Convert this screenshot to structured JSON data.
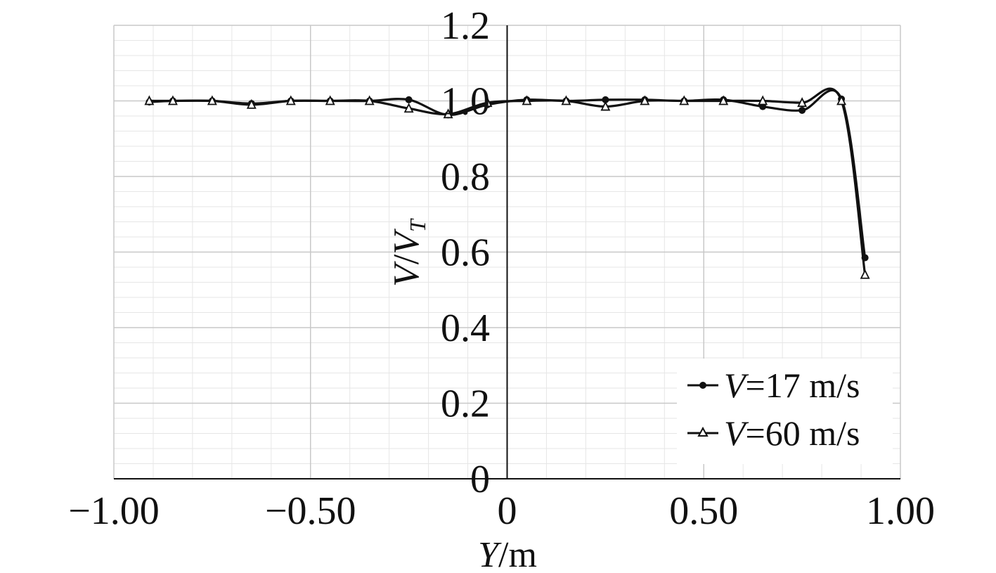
{
  "chart_data": {
    "type": "line",
    "xlabel": "Y/m",
    "ylabel": "V/V_T",
    "xlim": [
      -1.0,
      1.0
    ],
    "ylim": [
      0,
      1.2
    ],
    "x_ticks": [
      "−1.00",
      "−0.50",
      "0",
      "0.50",
      "1.00"
    ],
    "y_ticks": [
      "0",
      "0.2",
      "0.4",
      "0.6",
      "0.8",
      "1.0",
      "1.2"
    ],
    "grid": true,
    "legend_position": "bottom-right",
    "series": [
      {
        "name": "V=17 m/s",
        "marker": "filled-circle",
        "color": "#111111",
        "x": [
          -0.91,
          -0.85,
          -0.75,
          -0.65,
          -0.55,
          -0.45,
          -0.35,
          -0.25,
          -0.15,
          -0.05,
          0.05,
          0.15,
          0.25,
          0.35,
          0.45,
          0.55,
          0.65,
          0.75,
          0.85,
          0.91
        ],
        "y": [
          0.997,
          1.0,
          1.0,
          0.993,
          1.0,
          1.0,
          1.0,
          1.003,
          0.963,
          0.99,
          1.003,
          1.0,
          1.003,
          1.003,
          1.0,
          1.003,
          0.985,
          0.975,
          1.005,
          0.585
        ]
      },
      {
        "name": "V=60 m/s",
        "marker": "open-triangle",
        "color": "#111111",
        "x": [
          -0.91,
          -0.85,
          -0.75,
          -0.65,
          -0.55,
          -0.45,
          -0.35,
          -0.25,
          -0.15,
          -0.05,
          0.05,
          0.15,
          0.25,
          0.35,
          0.45,
          0.55,
          0.65,
          0.75,
          0.85,
          0.91
        ],
        "y": [
          1.0,
          1.0,
          1.0,
          0.99,
          1.0,
          1.0,
          1.0,
          0.98,
          0.965,
          0.995,
          1.0,
          1.0,
          0.985,
          1.0,
          1.0,
          1.0,
          1.0,
          0.995,
          1.0,
          0.54
        ]
      }
    ]
  }
}
